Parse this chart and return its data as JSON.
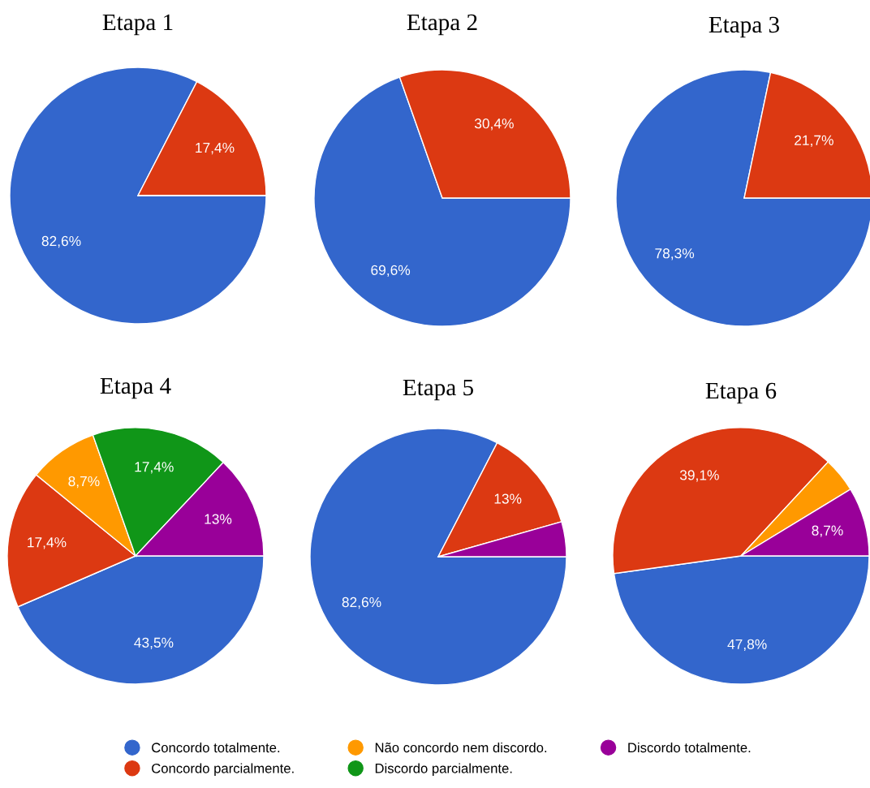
{
  "chart_data": [
    {
      "type": "pie",
      "title": "Etapa 1",
      "categories": [
        "Concordo totalmente.",
        "Concordo parcialmente.",
        "Não concordo nem discordo.",
        "Discordo parcialmente.",
        "Discordo totalmente."
      ],
      "values": [
        82.6,
        17.4,
        0,
        0,
        0
      ],
      "colors": [
        "#3366cc",
        "#dc3912",
        "#ff9900",
        "#109618",
        "#990099"
      ],
      "value_labels": [
        "82,6%",
        "17,4%",
        null,
        null,
        null
      ],
      "legend": "bottom"
    },
    {
      "type": "pie",
      "title": "Etapa 2",
      "categories": [
        null,
        null
      ],
      "values": [
        69.6,
        30.4
      ],
      "colors": [
        "#3366cc",
        "#dc3912"
      ],
      "value_labels": [
        "69,6%",
        "30,4%"
      ]
    },
    {
      "type": "pie",
      "title": "Etapa 3",
      "categories": [
        null,
        null
      ],
      "values": [
        78.3,
        21.7
      ],
      "colors": [
        "#3366cc",
        "#dc3912"
      ],
      "value_labels": [
        "78,3%",
        "21,7%"
      ]
    },
    {
      "type": "pie",
      "title": "Etapa 4",
      "categories": [
        null,
        null,
        null,
        null,
        null
      ],
      "values": [
        43.5,
        17.4,
        8.7,
        17.4,
        13
      ],
      "colors": [
        "#3366cc",
        "#dc3912",
        "#ff9900",
        "#109618",
        "#990099"
      ],
      "value_labels": [
        "43,5%",
        "17,4%",
        "8,7%",
        "17,4%",
        "13%"
      ]
    },
    {
      "type": "pie",
      "title": "Etapa 5",
      "categories": [
        null,
        null,
        null
      ],
      "values": [
        82.6,
        13,
        4.4
      ],
      "colors": [
        "#3366cc",
        "#dc3912",
        "#990099"
      ],
      "value_labels": [
        "82,6%",
        "13%",
        null
      ]
    },
    {
      "type": "pie",
      "title": "Etapa 6",
      "categories": [
        null,
        null,
        null,
        null
      ],
      "values": [
        47.8,
        39.1,
        4.4,
        8.7
      ],
      "colors": [
        "#3366cc",
        "#dc3912",
        "#ff9900",
        "#990099"
      ],
      "value_labels": [
        "47,8%",
        "39,1%",
        null,
        "8,7%"
      ]
    }
  ]
}
